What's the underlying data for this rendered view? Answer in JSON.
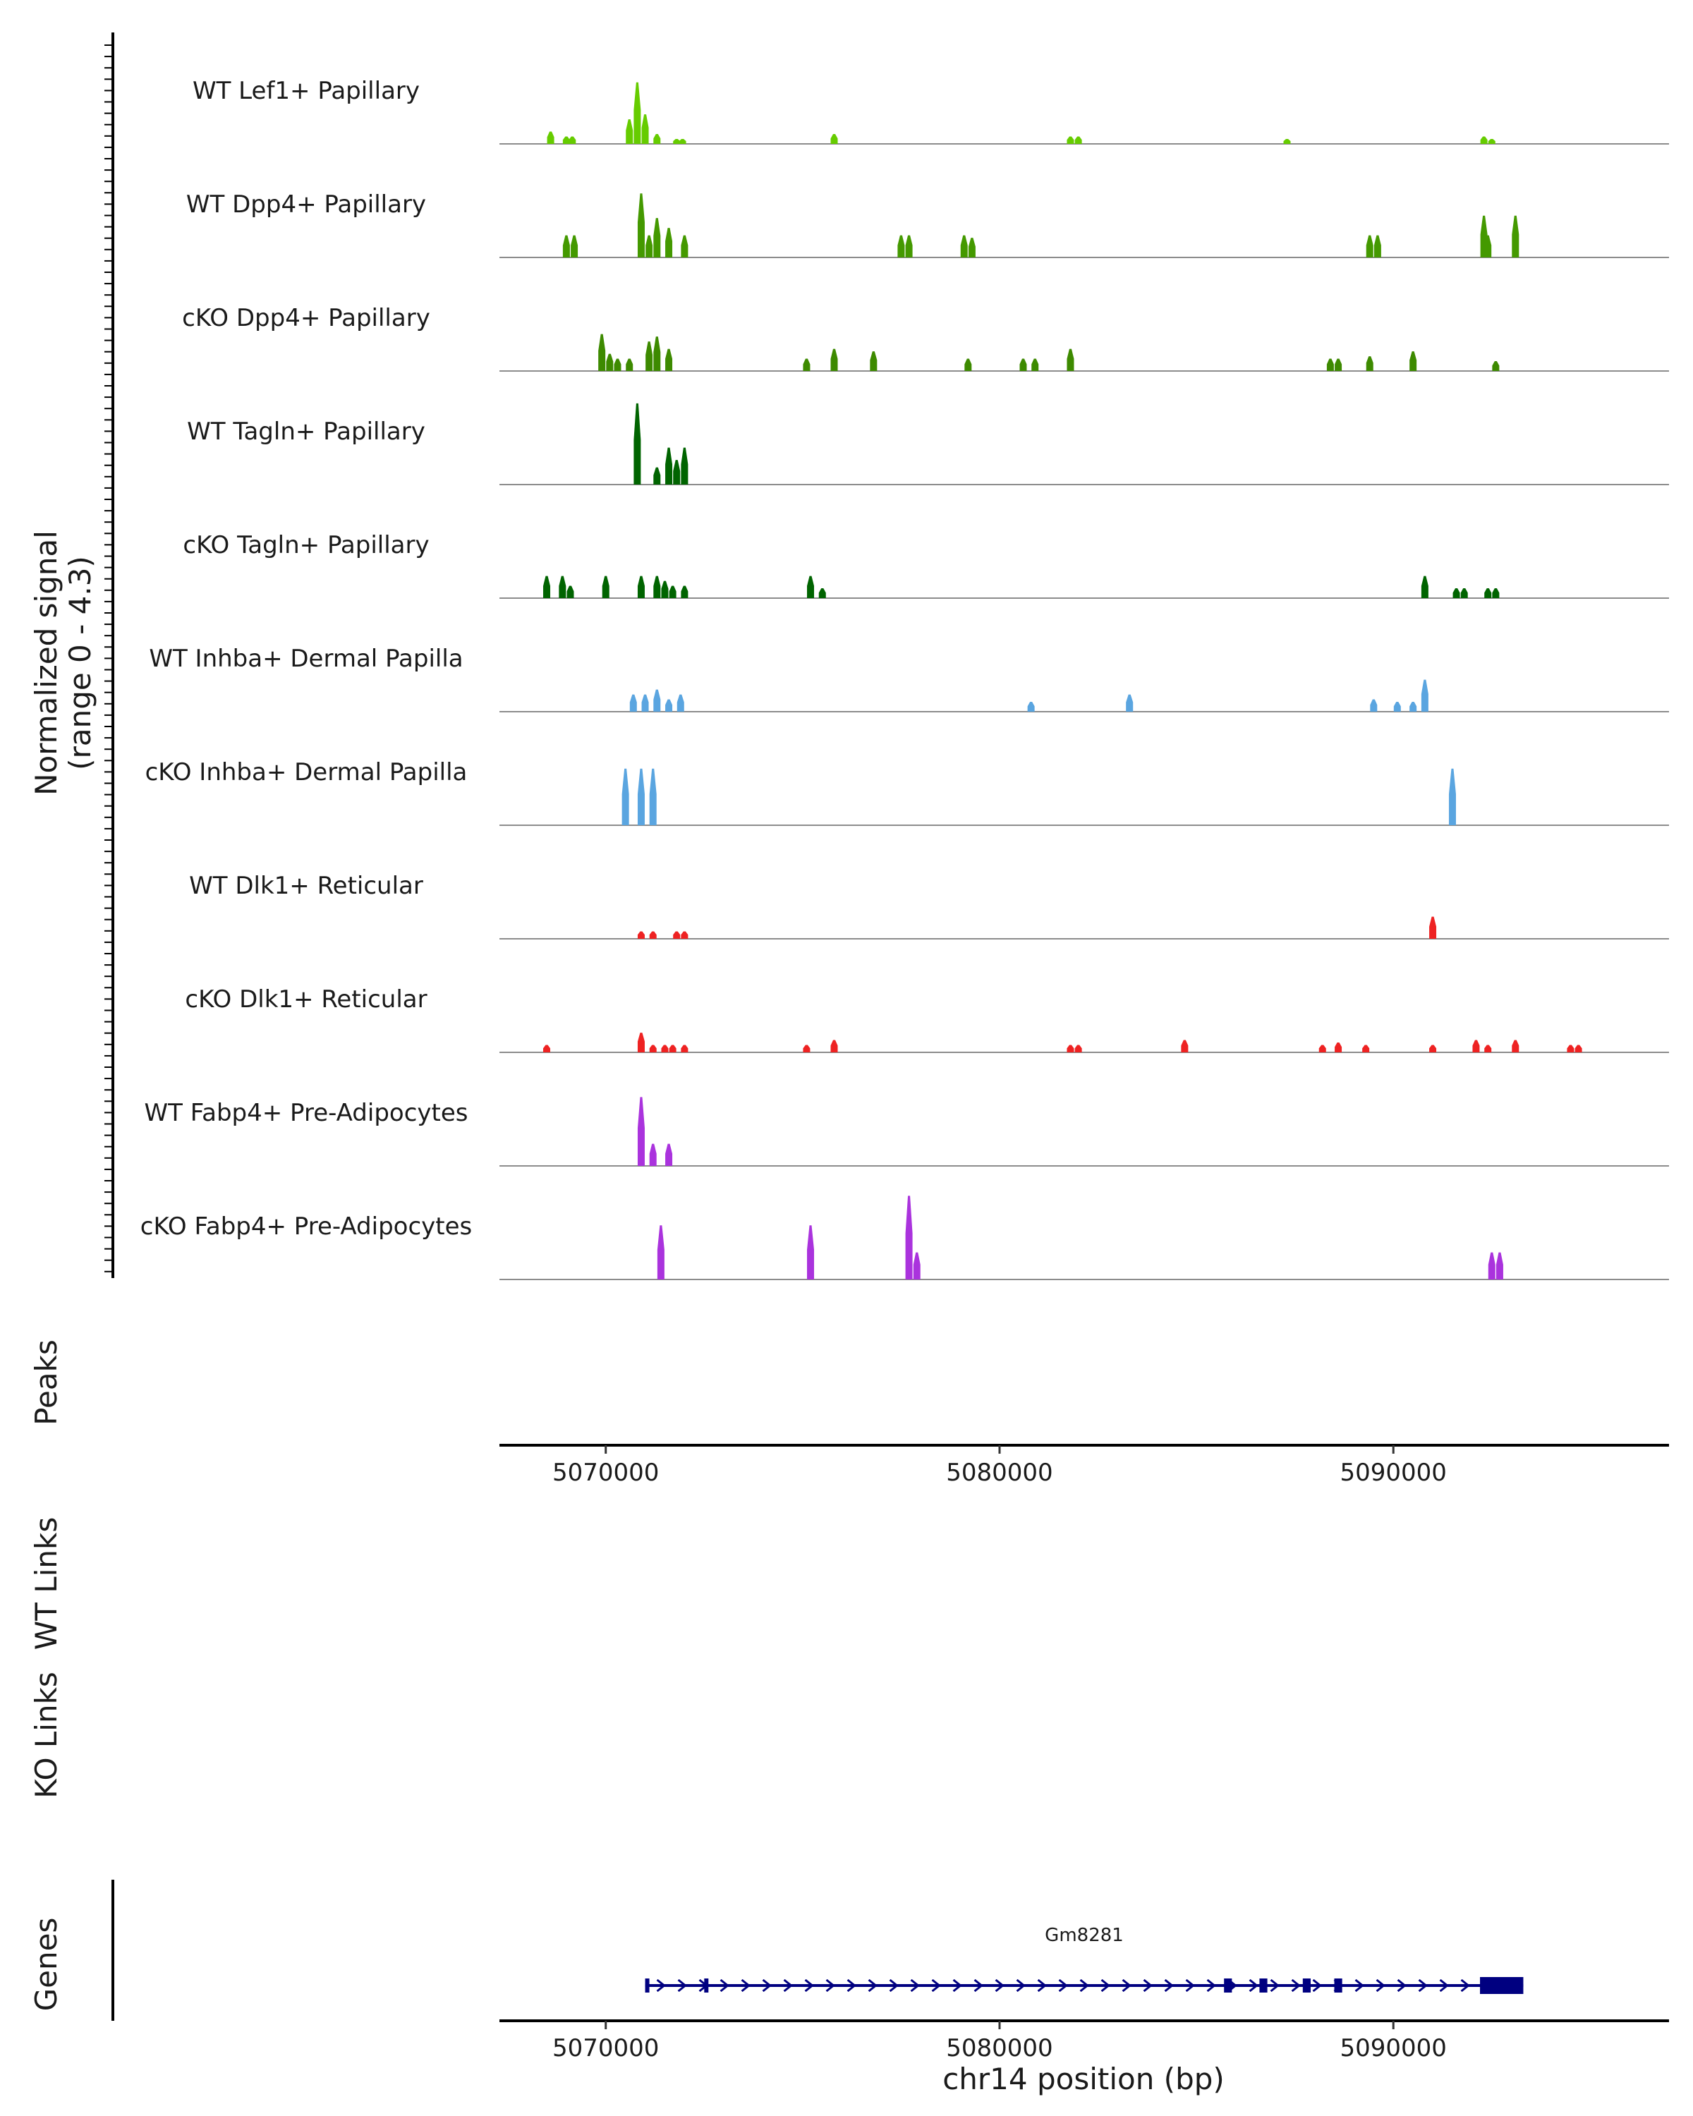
{
  "chart_data": {
    "type": "coverage-track",
    "x_axis": {
      "label": "chr14 position (bp)",
      "range": [
        5067300,
        5097000
      ],
      "ticks": [
        5070000,
        5080000,
        5090000
      ],
      "tick_labels": [
        "5070000",
        "5080000",
        "5090000"
      ]
    },
    "y_axis": {
      "label_line1": "Normalized signal",
      "label_line2": "(range 0 - 4.3)",
      "range": [
        0,
        4.3
      ]
    },
    "tracks": [
      {
        "label": "WT Lef1+ Papillary",
        "color": "#66cc00",
        "peaks": [
          [
            5068600,
            0.5
          ],
          [
            5069000,
            0.3
          ],
          [
            5069150,
            0.3
          ],
          [
            5070600,
            1.0
          ],
          [
            5070800,
            2.5
          ],
          [
            5071000,
            1.2
          ],
          [
            5071300,
            0.4
          ],
          [
            5071800,
            0.2
          ],
          [
            5071950,
            0.2
          ],
          [
            5075800,
            0.4
          ],
          [
            5081800,
            0.3
          ],
          [
            5082000,
            0.3
          ],
          [
            5087300,
            0.2
          ],
          [
            5092300,
            0.3
          ],
          [
            5092500,
            0.2
          ]
        ]
      },
      {
        "label": "WT Dpp4+ Papillary",
        "color": "#449900",
        "peaks": [
          [
            5069000,
            0.9
          ],
          [
            5069200,
            0.9
          ],
          [
            5070900,
            2.6
          ],
          [
            5071100,
            0.9
          ],
          [
            5071300,
            1.6
          ],
          [
            5071600,
            1.2
          ],
          [
            5072000,
            0.9
          ],
          [
            5077500,
            0.9
          ],
          [
            5077700,
            0.9
          ],
          [
            5079100,
            0.9
          ],
          [
            5079300,
            0.8
          ],
          [
            5089400,
            0.9
          ],
          [
            5089600,
            0.9
          ],
          [
            5092300,
            1.7
          ],
          [
            5092400,
            0.9
          ],
          [
            5093100,
            1.7
          ]
        ]
      },
      {
        "label": "cKO Dpp4+ Papillary",
        "color": "#3d8a00",
        "peaks": [
          [
            5069900,
            1.5
          ],
          [
            5070100,
            0.7
          ],
          [
            5070300,
            0.5
          ],
          [
            5070600,
            0.5
          ],
          [
            5071100,
            1.2
          ],
          [
            5071300,
            1.4
          ],
          [
            5071600,
            0.9
          ],
          [
            5075100,
            0.5
          ],
          [
            5075800,
            0.9
          ],
          [
            5076800,
            0.8
          ],
          [
            5079200,
            0.5
          ],
          [
            5080600,
            0.5
          ],
          [
            5080900,
            0.5
          ],
          [
            5081800,
            0.9
          ],
          [
            5088400,
            0.5
          ],
          [
            5088600,
            0.5
          ],
          [
            5089400,
            0.6
          ],
          [
            5090500,
            0.8
          ],
          [
            5092600,
            0.4
          ]
        ]
      },
      {
        "label": "WT Tagln+ Papillary",
        "color": "#006400",
        "peaks": [
          [
            5070800,
            3.3
          ],
          [
            5071300,
            0.7
          ],
          [
            5071600,
            1.5
          ],
          [
            5071800,
            1.0
          ],
          [
            5072000,
            1.5
          ]
        ]
      },
      {
        "label": "cKO Tagln+ Papillary",
        "color": "#006400",
        "peaks": [
          [
            5068500,
            0.9
          ],
          [
            5068900,
            0.9
          ],
          [
            5069100,
            0.5
          ],
          [
            5070000,
            0.9
          ],
          [
            5070900,
            0.9
          ],
          [
            5071300,
            0.9
          ],
          [
            5071500,
            0.7
          ],
          [
            5071700,
            0.5
          ],
          [
            5072000,
            0.5
          ],
          [
            5075200,
            0.9
          ],
          [
            5075500,
            0.4
          ],
          [
            5090800,
            0.9
          ],
          [
            5091600,
            0.4
          ],
          [
            5091800,
            0.4
          ],
          [
            5092400,
            0.4
          ],
          [
            5092600,
            0.4
          ]
        ]
      },
      {
        "label": "WT Inhba+ Dermal Papilla",
        "color": "#5aa5e0",
        "peaks": [
          [
            5070700,
            0.7
          ],
          [
            5071000,
            0.7
          ],
          [
            5071300,
            0.9
          ],
          [
            5071600,
            0.5
          ],
          [
            5071900,
            0.7
          ],
          [
            5080800,
            0.4
          ],
          [
            5083300,
            0.7
          ],
          [
            5089500,
            0.5
          ],
          [
            5090100,
            0.4
          ],
          [
            5090500,
            0.4
          ],
          [
            5090800,
            1.3
          ]
        ]
      },
      {
        "label": "cKO Inhba+ Dermal Papilla",
        "color": "#5aa5e0",
        "peaks": [
          [
            5070500,
            2.3
          ],
          [
            5070900,
            2.3
          ],
          [
            5071200,
            2.3
          ],
          [
            5091500,
            2.3
          ]
        ]
      },
      {
        "label": "WT Dlk1+ Reticular",
        "color": "#ee2222",
        "peaks": [
          [
            5070900,
            0.3
          ],
          [
            5071200,
            0.3
          ],
          [
            5071800,
            0.3
          ],
          [
            5072000,
            0.3
          ],
          [
            5091000,
            0.9
          ]
        ]
      },
      {
        "label": "cKO Dlk1+ Reticular",
        "color": "#ee2222",
        "peaks": [
          [
            5068500,
            0.3
          ],
          [
            5070900,
            0.8
          ],
          [
            5071200,
            0.3
          ],
          [
            5071500,
            0.3
          ],
          [
            5071700,
            0.3
          ],
          [
            5072000,
            0.3
          ],
          [
            5075100,
            0.3
          ],
          [
            5075800,
            0.5
          ],
          [
            5081800,
            0.3
          ],
          [
            5082000,
            0.3
          ],
          [
            5084700,
            0.5
          ],
          [
            5088200,
            0.3
          ],
          [
            5088600,
            0.4
          ],
          [
            5089300,
            0.3
          ],
          [
            5091000,
            0.3
          ],
          [
            5092100,
            0.5
          ],
          [
            5092400,
            0.3
          ],
          [
            5093100,
            0.5
          ],
          [
            5094500,
            0.3
          ],
          [
            5094700,
            0.3
          ]
        ]
      },
      {
        "label": "WT Fabp4+ Pre-Adipocytes",
        "color": "#aa33dd",
        "peaks": [
          [
            5070900,
            2.8
          ],
          [
            5071200,
            0.9
          ],
          [
            5071600,
            0.9
          ]
        ]
      },
      {
        "label": "cKO Fabp4+ Pre-Adipocytes",
        "color": "#aa33dd",
        "peaks": [
          [
            5071400,
            2.2
          ],
          [
            5075200,
            2.2
          ],
          [
            5077700,
            3.4
          ],
          [
            5077900,
            1.1
          ],
          [
            5092500,
            1.1
          ],
          [
            5092700,
            1.1
          ]
        ]
      }
    ],
    "panels": {
      "peaks": "Peaks",
      "wt_links": "WT Links",
      "ko_links": "KO Links",
      "genes": "Genes"
    },
    "gene": {
      "name": "Gm8281",
      "color": "#000080",
      "start": 5071000,
      "end": 5093300,
      "strand": "+",
      "exons": [
        [
          5071000,
          5071100
        ],
        [
          5072500,
          5072600
        ],
        [
          5085700,
          5085900
        ],
        [
          5086600,
          5086800
        ],
        [
          5087700,
          5087900
        ],
        [
          5088500,
          5088700
        ],
        [
          5092200,
          5093300
        ]
      ]
    }
  }
}
